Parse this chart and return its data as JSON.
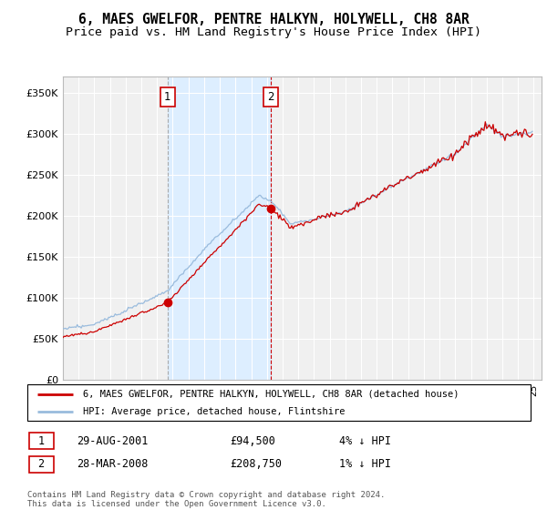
{
  "title": "6, MAES GWELFOR, PENTRE HALKYN, HOLYWELL, CH8 8AR",
  "subtitle": "Price paid vs. HM Land Registry's House Price Index (HPI)",
  "ylim": [
    0,
    370000
  ],
  "yticks": [
    0,
    50000,
    100000,
    150000,
    200000,
    250000,
    300000,
    350000
  ],
  "ytick_labels": [
    "£0",
    "£50K",
    "£100K",
    "£150K",
    "£200K",
    "£250K",
    "£300K",
    "£350K"
  ],
  "x_start_year": 1995,
  "x_end_year": 2025,
  "purchase1_price": 94500,
  "purchase2_price": 208750,
  "purchase1_year": 2001.667,
  "purchase2_year": 2008.25,
  "legend1": "6, MAES GWELFOR, PENTRE HALKYN, HOLYWELL, CH8 8AR (detached house)",
  "legend2": "HPI: Average price, detached house, Flintshire",
  "footer": "Contains HM Land Registry data © Crown copyright and database right 2024.\nThis data is licensed under the Open Government Licence v3.0.",
  "line_color_property": "#cc0000",
  "line_color_hpi": "#99bbdd",
  "background_color": "#ddeeff",
  "grid_color": "#ffffff",
  "purchase_box_color": "#cc0000",
  "vline1_color": "#aaaaaa",
  "vline2_color": "#cc0000",
  "title_fontsize": 10.5,
  "subtitle_fontsize": 9.5,
  "row1_date": "29-AUG-2001",
  "row1_price": "£94,500",
  "row1_hpi": "4% ↓ HPI",
  "row2_date": "28-MAR-2008",
  "row2_price": "£208,750",
  "row2_hpi": "1% ↓ HPI"
}
